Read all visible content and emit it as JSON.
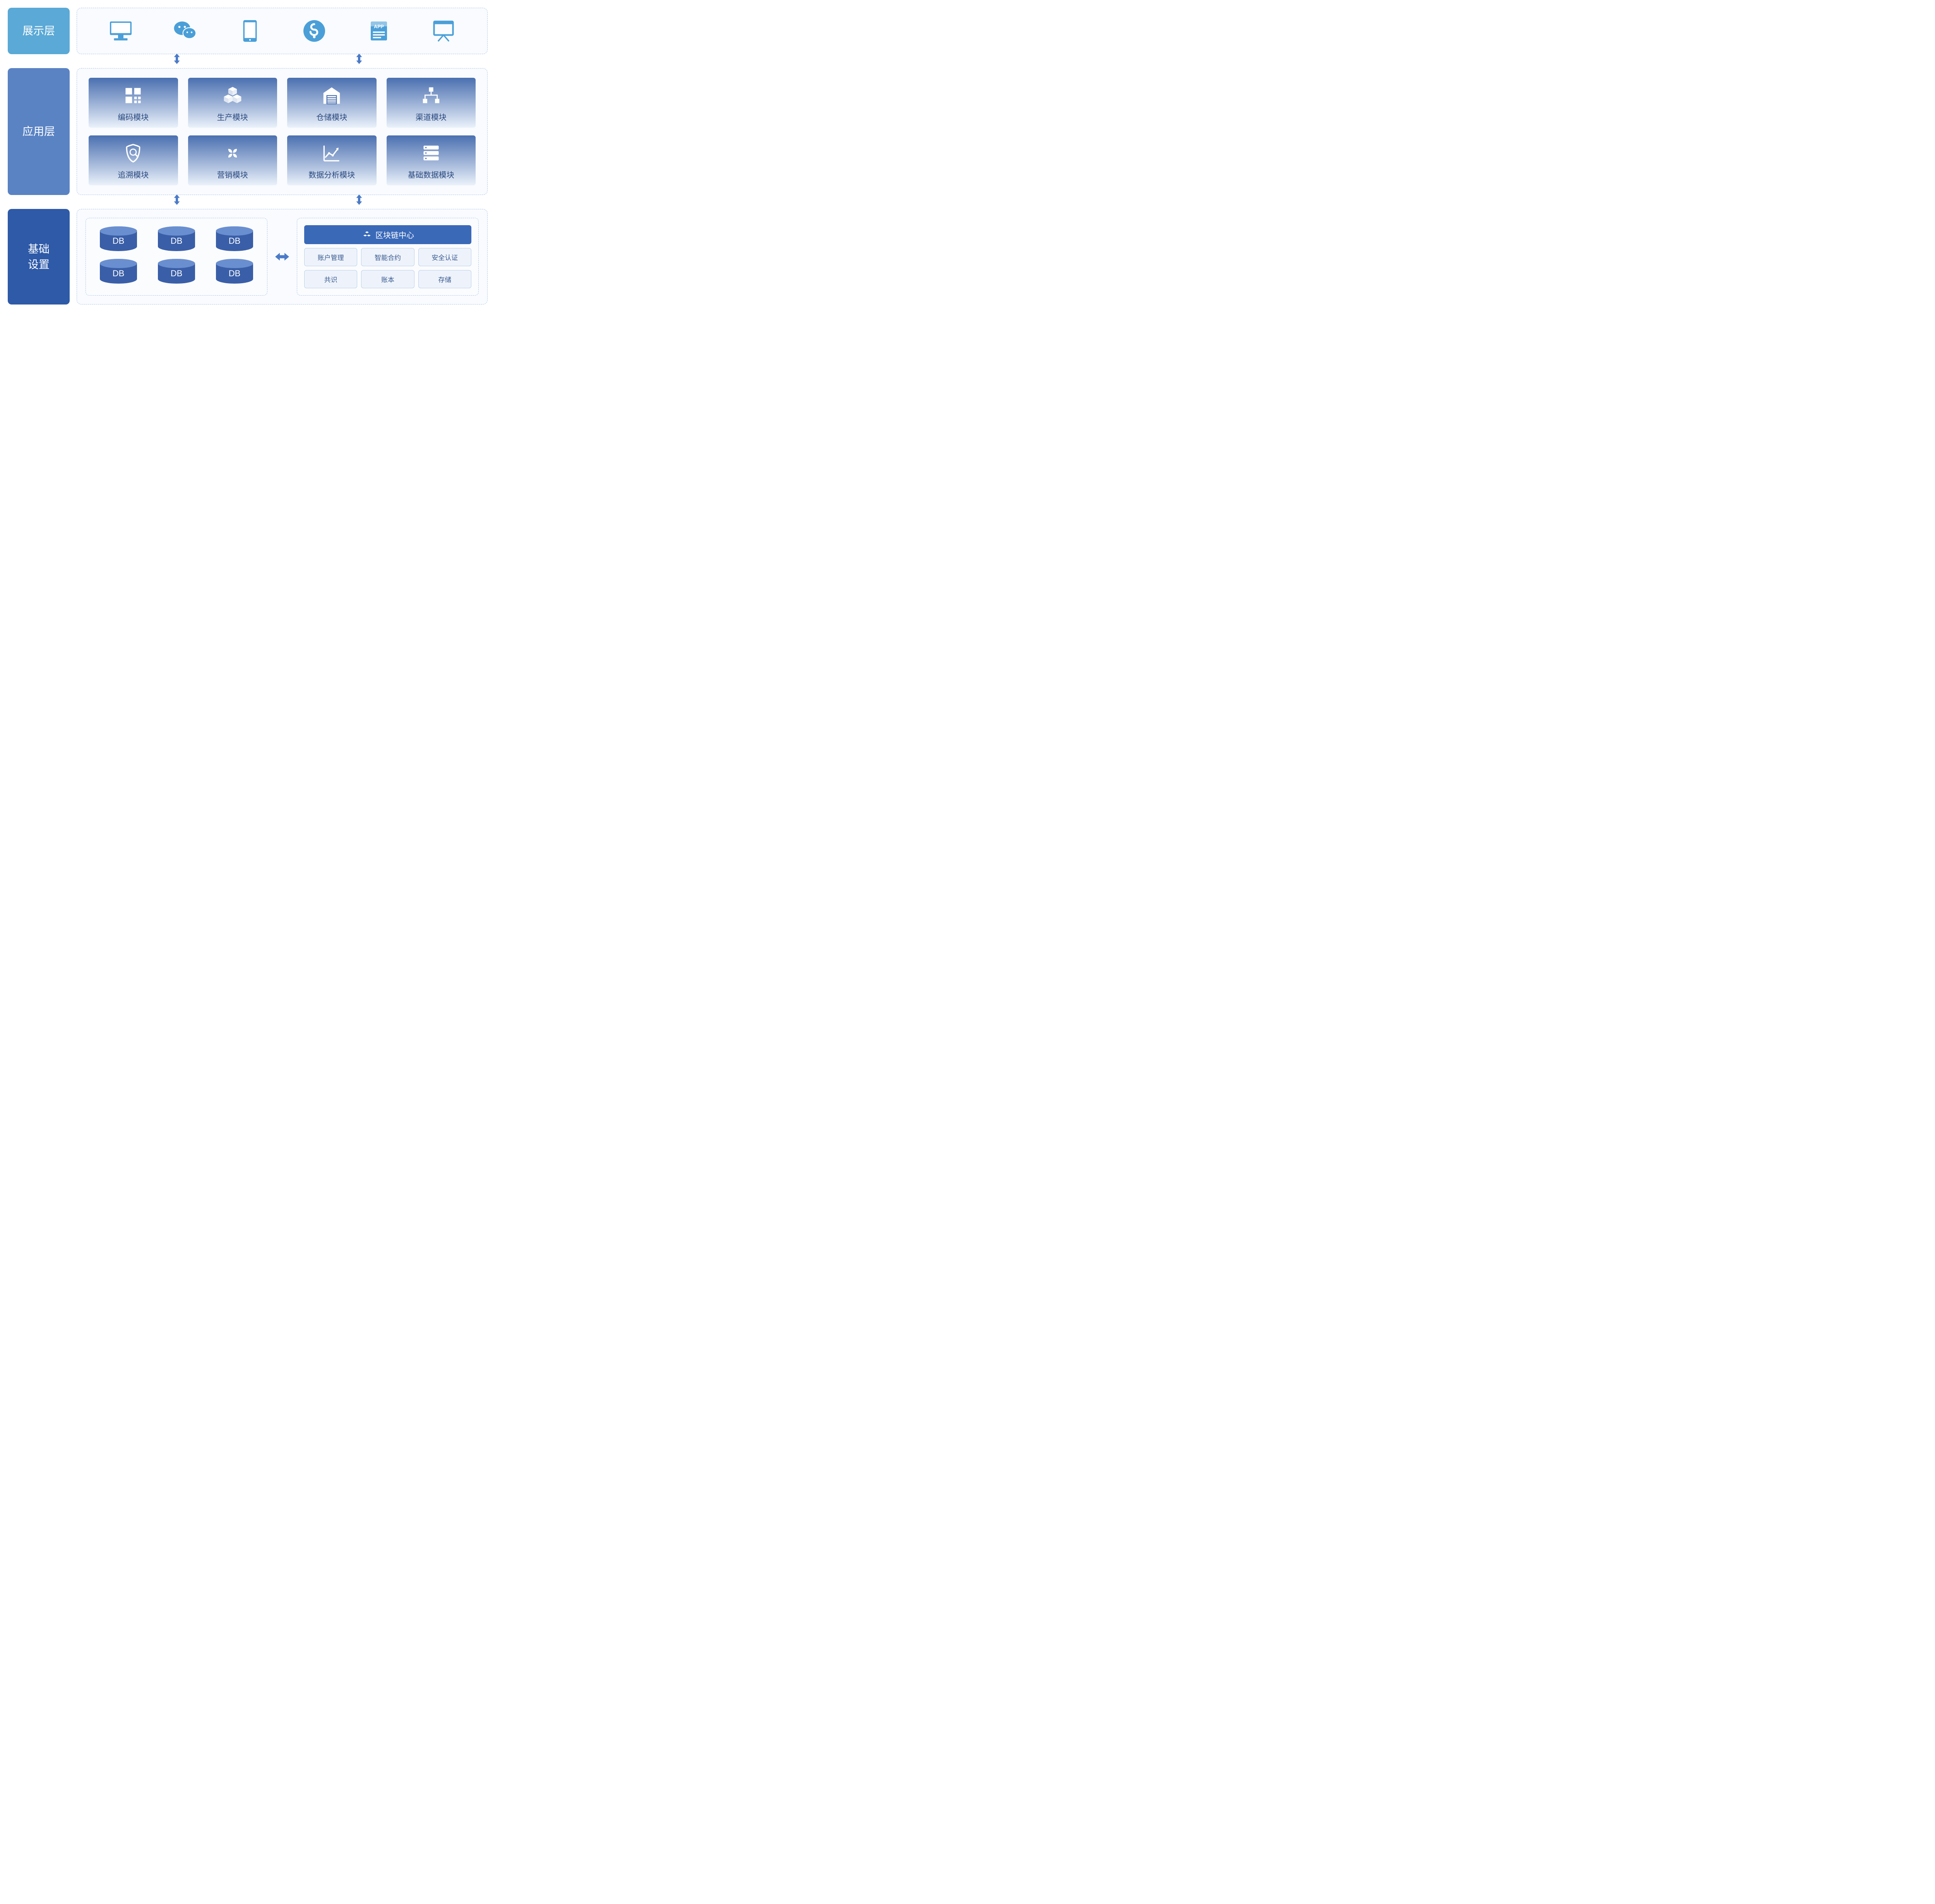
{
  "colors": {
    "row1_label_bg": "#5aa9d6",
    "row2_label_bg": "#5a83c4",
    "row3_label_bg": "#2e5aa8",
    "dash_border": "#a8c4e8",
    "pres_icon": "#4a9fd8",
    "module_grad_top": "#4a6fb0",
    "module_grad_bottom": "#eaf1fa",
    "module_text": "#2b4a80",
    "module_icon": "#ffffff",
    "arrow": "#4a7bc8",
    "db_top": "#6a8fd0",
    "db_side": "#3a5fa8",
    "db_text": "#ffffff",
    "bc_header_bg": "#3a69b8",
    "bc_item_bg": "#eef3fb",
    "bc_item_border": "#b8cee8",
    "bc_item_text": "#3a5a90"
  },
  "layers": {
    "presentation": {
      "label": "展示层",
      "icons": [
        "monitor",
        "wechat",
        "tablet",
        "miniapp",
        "app",
        "board"
      ]
    },
    "application": {
      "label": "应用层",
      "modules": [
        {
          "icon": "qrcode",
          "label": "编码模块"
        },
        {
          "icon": "cubes",
          "label": "生产模块"
        },
        {
          "icon": "warehouse",
          "label": "仓储模块"
        },
        {
          "icon": "tree",
          "label": "渠道模块"
        },
        {
          "icon": "shield",
          "label": "追溯模块"
        },
        {
          "icon": "petals",
          "label": "营销模块"
        },
        {
          "icon": "chart",
          "label": "数据分析模块"
        },
        {
          "icon": "servers",
          "label": "基础数据模块"
        }
      ]
    },
    "infrastructure": {
      "label": "基础\n设置",
      "db": {
        "count": 6,
        "label": "DB"
      },
      "blockchain": {
        "header": "区块链中心",
        "items": [
          "账户管理",
          "智能合约",
          "安全认证",
          "共识",
          "账本",
          "存储"
        ]
      }
    }
  },
  "arrows": {
    "between_rows": [
      {
        "between": "presentation-application",
        "x_positions_pct": [
          34,
          72
        ]
      },
      {
        "between": "application-infrastructure",
        "x_positions_pct": [
          34,
          72
        ]
      }
    ],
    "horizontal_in_row3": true
  }
}
